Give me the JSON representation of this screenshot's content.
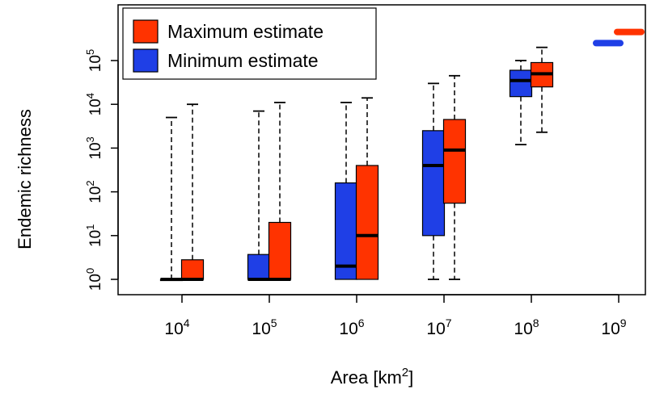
{
  "chart_data": {
    "type": "box",
    "title": "",
    "xlabel": "Area [km",
    "xlabel_sup": "2",
    "xlabel_close": "]",
    "ylabel": "Endemic richness",
    "x_scale": "log10",
    "y_scale": "log10",
    "x_ticks": [
      {
        "base": "10",
        "exp": "4",
        "value": 10000
      },
      {
        "base": "10",
        "exp": "5",
        "value": 100000
      },
      {
        "base": "10",
        "exp": "6",
        "value": 1000000
      },
      {
        "base": "10",
        "exp": "7",
        "value": 10000000
      },
      {
        "base": "10",
        "exp": "8",
        "value": 100000000
      },
      {
        "base": "10",
        "exp": "9",
        "value": 1000000000
      }
    ],
    "y_ticks": [
      {
        "base": "10",
        "exp": "0",
        "value": 1
      },
      {
        "base": "10",
        "exp": "1",
        "value": 10
      },
      {
        "base": "10",
        "exp": "2",
        "value": 100
      },
      {
        "base": "10",
        "exp": "3",
        "value": 1000
      },
      {
        "base": "10",
        "exp": "4",
        "value": 10000
      },
      {
        "base": "10",
        "exp": "5",
        "value": 100000
      }
    ],
    "legend": {
      "position": "top-left",
      "entries": [
        {
          "label": "Maximum estimate",
          "series": "max"
        },
        {
          "label": "Minimum estimate",
          "series": "min"
        }
      ]
    },
    "colors": {
      "min": "#1f3fe6",
      "max": "#ff3300"
    },
    "series": [
      {
        "key": "min",
        "boxes": [
          {
            "area": 10000,
            "whisker_low": 1,
            "q1": 1,
            "median": 1,
            "q3": 1,
            "whisker_high": 5000
          },
          {
            "area": 100000,
            "whisker_low": 1,
            "q1": 1,
            "median": 1,
            "q3": 3.7,
            "whisker_high": 7000
          },
          {
            "area": 1000000,
            "whisker_low": 1,
            "q1": 1,
            "median": 2,
            "q3": 160,
            "whisker_high": 11000
          },
          {
            "area": 10000000,
            "whisker_low": 1,
            "q1": 10,
            "median": 400,
            "q3": 2500,
            "whisker_high": 30000
          },
          {
            "area": 100000000,
            "whisker_low": 1200,
            "q1": 15000,
            "median": 35000,
            "q3": 60000,
            "whisker_high": 100000
          },
          {
            "area": 1000000000,
            "whisker_low": 250000,
            "q1": 250000,
            "median": 250000,
            "q3": 250000,
            "whisker_high": 250000
          }
        ]
      },
      {
        "key": "max",
        "boxes": [
          {
            "area": 10000,
            "whisker_low": 1,
            "q1": 1,
            "median": 1,
            "q3": 2.8,
            "whisker_high": 10000
          },
          {
            "area": 100000,
            "whisker_low": 1,
            "q1": 1,
            "median": 1,
            "q3": 20,
            "whisker_high": 11000
          },
          {
            "area": 1000000,
            "whisker_low": 1,
            "q1": 1,
            "median": 10,
            "q3": 400,
            "whisker_high": 14000
          },
          {
            "area": 10000000,
            "whisker_low": 1,
            "q1": 55,
            "median": 900,
            "q3": 4500,
            "whisker_high": 45000
          },
          {
            "area": 100000000,
            "whisker_low": 2300,
            "q1": 25000,
            "median": 50000,
            "q3": 90000,
            "whisker_high": 200000
          },
          {
            "area": 1000000000,
            "whisker_low": 450000,
            "q1": 450000,
            "median": 450000,
            "q3": 450000,
            "whisker_high": 450000
          }
        ]
      }
    ]
  }
}
